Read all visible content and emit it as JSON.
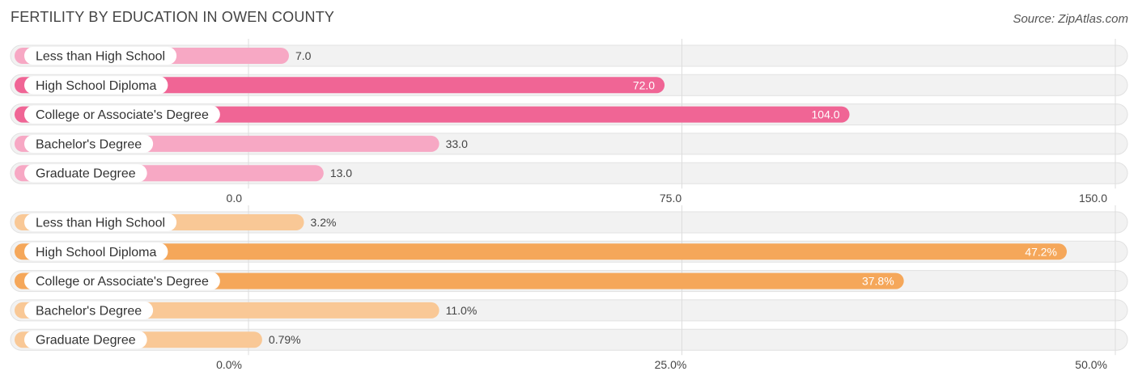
{
  "title": "FERTILITY BY EDUCATION IN OWEN COUNTY",
  "source": "Source: ZipAtlas.com",
  "chart_data": [
    {
      "type": "bar",
      "orientation": "horizontal",
      "categories": [
        "Less than High School",
        "High School Diploma",
        "College or Associate's Degree",
        "Bachelor's Degree",
        "Graduate Degree"
      ],
      "values": [
        7.0,
        72.0,
        104.0,
        33.0,
        13.0
      ],
      "value_labels": [
        "7.0",
        "72.0",
        "104.0",
        "33.0",
        "13.0"
      ],
      "xlim": [
        0,
        150
      ],
      "ticks": [
        0,
        75,
        150
      ],
      "tick_labels": [
        "0.0",
        "75.0",
        "150.0"
      ],
      "colors": {
        "light": "#f7a8c4",
        "dark": "#f06595"
      }
    },
    {
      "type": "bar",
      "orientation": "horizontal",
      "categories": [
        "Less than High School",
        "High School Diploma",
        "College or Associate's Degree",
        "Bachelor's Degree",
        "Graduate Degree"
      ],
      "values": [
        3.2,
        47.2,
        37.8,
        11.0,
        0.79
      ],
      "value_labels": [
        "3.2%",
        "47.2%",
        "37.8%",
        "11.0%",
        "0.79%"
      ],
      "xlim": [
        0,
        50
      ],
      "ticks": [
        0,
        25,
        50
      ],
      "tick_labels": [
        "0.0%",
        "25.0%",
        "50.0%"
      ],
      "colors": {
        "light": "#f9c896",
        "dark": "#f5a75a"
      }
    }
  ]
}
